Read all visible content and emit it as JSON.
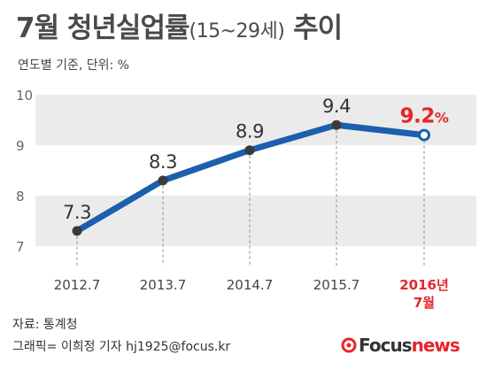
{
  "title": {
    "main": "7월 청년실업률",
    "paren": "(15~29세)",
    "tail": " 추이"
  },
  "subtitle": "연도별 기준, 단위: %",
  "footer": {
    "source": "자료: 통계청",
    "credit": "그래픽= 이희정 기자 hj1925@focus.kr"
  },
  "logo": {
    "focus": "Focus",
    "news": "news"
  },
  "colors": {
    "line": "#1b5fad",
    "highlight": "#e8242a",
    "band": "#ebebeb",
    "marker": "#3a3a3a"
  },
  "chart_data": {
    "type": "line",
    "categories": [
      "2012.7",
      "2013.7",
      "2014.7",
      "2015.7",
      "2016년\n7월"
    ],
    "values": [
      7.3,
      8.3,
      8.9,
      9.4,
      9.2
    ],
    "value_labels": [
      "7.3",
      "8.3",
      "8.9",
      "9.4",
      "9.2%"
    ],
    "yticks": [
      7,
      8,
      9,
      10
    ],
    "ylim": [
      7,
      10
    ],
    "highlight_index": 4,
    "grid": "alternating bands"
  }
}
